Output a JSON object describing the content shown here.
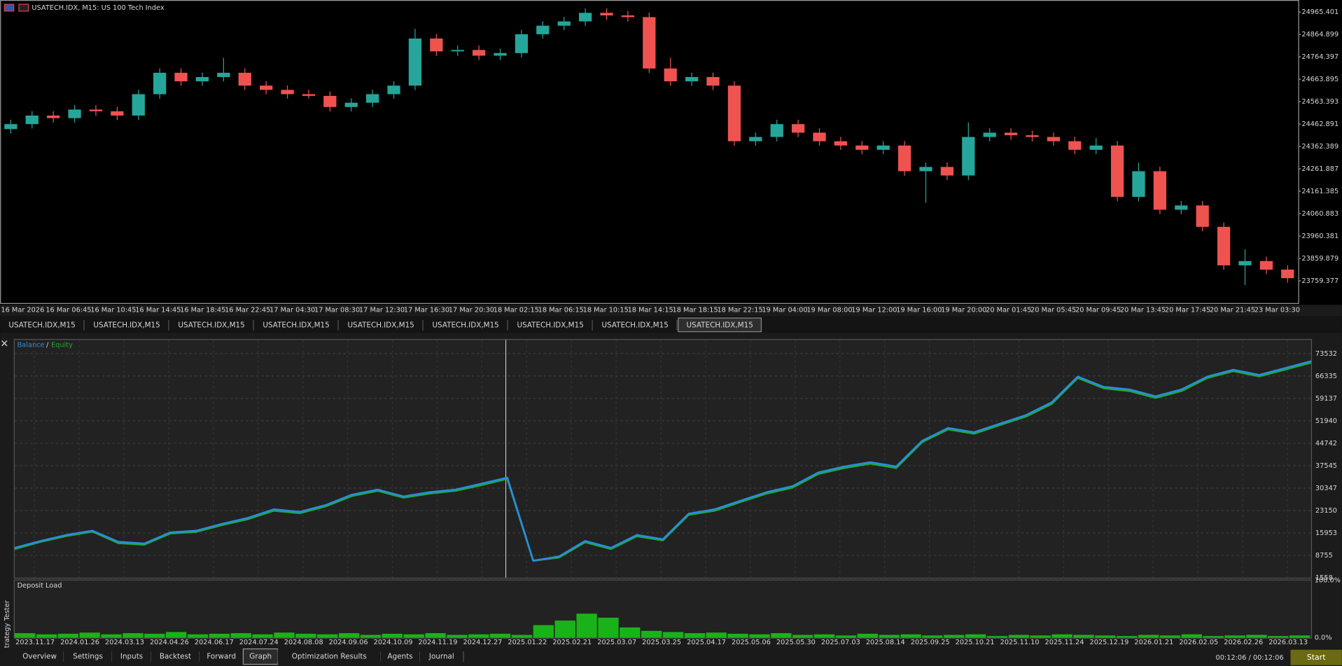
{
  "chart_data": [
    {
      "type": "candlestick",
      "title": "USATECH.IDX, M15:  US 100 Tech Index",
      "up_color": "#26a69a",
      "down_color": "#ef5350",
      "ylim": [
        23659.5,
        25019.2
      ],
      "yticks": [
        24965.401,
        24864.899,
        24764.397,
        24663.895,
        24563.393,
        24462.891,
        24362.389,
        24261.887,
        24161.385,
        24060.883,
        23960.381,
        23859.879,
        23759.377
      ],
      "x_labels": [
        "16 Mar 2026",
        "16 Mar 06:45",
        "16 Mar 10:45",
        "16 Mar 14:45",
        "16 Mar 18:45",
        "16 Mar 22:45",
        "17 Mar 04:30",
        "17 Mar 08:30",
        "17 Mar 12:30",
        "17 Mar 16:30",
        "17 Mar 20:30",
        "18 Mar 02:15",
        "18 Mar 06:15",
        "18 Mar 10:15",
        "18 Mar 14:15",
        "18 Mar 18:15",
        "18 Mar 22:15",
        "19 Mar 04:00",
        "19 Mar 08:00",
        "19 Mar 12:00",
        "19 Mar 16:00",
        "19 Mar 20:00",
        "20 Mar 01:45",
        "20 Mar 05:45",
        "20 Mar 09:45",
        "20 Mar 13:45",
        "20 Mar 17:45",
        "20 Mar 21:45",
        "23 Mar 03:30"
      ],
      "candles": [
        [
          24440.0,
          24482.3,
          24420.0,
          24462.3
        ],
        [
          24462.3,
          24520.7,
          24442.3,
          24500.7
        ],
        [
          24500.7,
          24520.7,
          24469.2,
          24489.2
        ],
        [
          24489.2,
          24547.6,
          24469.2,
          24527.6
        ],
        [
          24527.6,
          24547.6,
          24499.9,
          24519.9
        ],
        [
          24519.9,
          24539.9,
          24480.7,
          24500.7
        ],
        [
          24500.7,
          24616.7,
          24480.7,
          24596.7
        ],
        [
          24596.7,
          24712.7,
          24576.7,
          24692.7
        ],
        [
          24692.7,
          24712.7,
          24634.3,
          24654.3
        ],
        [
          24654.3,
          24693.5,
          24634.3,
          24673.5
        ],
        [
          24673.5,
          24760.0,
          24653.5,
          24692.7
        ],
        [
          24692.7,
          24712.7,
          24615.1,
          24635.1
        ],
        [
          24635.1,
          24655.1,
          24595.9,
          24615.9
        ],
        [
          24615.9,
          24635.9,
          24576.7,
          24596.7
        ],
        [
          24596.7,
          24616.7,
          24576.7,
          24589.0
        ],
        [
          24589.0,
          24609.0,
          24519.1,
          24539.1
        ],
        [
          24539.1,
          24578.3,
          24519.1,
          24558.3
        ],
        [
          24558.3,
          24616.7,
          24538.3,
          24596.7
        ],
        [
          24596.7,
          24655.1,
          24576.7,
          24635.1
        ],
        [
          24635.1,
          24890.0,
          24615.1,
          24846.4
        ],
        [
          24846.4,
          24866.4,
          24768.7,
          24788.7
        ],
        [
          24788.7,
          24815.0,
          24768.7,
          24795.0
        ],
        [
          24795.0,
          24815.0,
          24749.5,
          24769.5
        ],
        [
          24769.5,
          24801.1,
          24749.5,
          24781.1
        ],
        [
          24781.1,
          24885.6,
          24761.1,
          24865.6
        ],
        [
          24865.6,
          24923.9,
          24845.6,
          24903.9
        ],
        [
          24903.9,
          24943.2,
          24883.9,
          24923.2
        ],
        [
          24923.2,
          24981.6,
          24903.2,
          24961.6
        ],
        [
          24961.6,
          24981.6,
          24930.1,
          24950.1
        ],
        [
          24950.1,
          24970.1,
          24922.4,
          24942.4
        ],
        [
          24942.4,
          24962.4,
          24691.9,
          24711.9
        ],
        [
          24711.9,
          24760.0,
          24634.3,
          24654.3
        ],
        [
          24654.3,
          24693.5,
          24634.3,
          24673.5
        ],
        [
          24673.5,
          24693.5,
          24615.1,
          24635.1
        ],
        [
          24635.1,
          24655.1,
          24365.5,
          24385.5
        ],
        [
          24385.5,
          24424.7,
          24365.5,
          24404.7
        ],
        [
          24404.7,
          24482.3,
          24384.7,
          24462.3
        ],
        [
          24462.3,
          24482.3,
          24403.9,
          24423.9
        ],
        [
          24423.9,
          24443.9,
          24365.5,
          24385.5
        ],
        [
          24385.5,
          24405.5,
          24346.3,
          24366.3
        ],
        [
          24366.3,
          24386.3,
          24327.1,
          24347.1
        ],
        [
          24347.1,
          24386.3,
          24327.1,
          24366.3
        ],
        [
          24366.3,
          24386.3,
          24231.0,
          24251.0
        ],
        [
          24251.0,
          24290.2,
          24110.0,
          24270.2
        ],
        [
          24270.2,
          24290.2,
          24211.8,
          24231.8
        ],
        [
          24231.8,
          24470.0,
          24211.8,
          24404.7
        ],
        [
          24404.7,
          24443.9,
          24384.7,
          24423.9
        ],
        [
          24423.9,
          24443.9,
          24392.4,
          24412.4
        ],
        [
          24412.4,
          24432.4,
          24384.7,
          24404.7
        ],
        [
          24404.7,
          24424.7,
          24365.5,
          24385.5
        ],
        [
          24385.5,
          24405.5,
          24327.1,
          24347.1
        ],
        [
          24347.1,
          24400.0,
          24327.1,
          24366.3
        ],
        [
          24366.3,
          24386.3,
          24115.8,
          24135.8
        ],
        [
          24135.8,
          24290.0,
          24115.8,
          24251.0
        ],
        [
          24251.0,
          24271.0,
          24058.2,
          24078.2
        ],
        [
          24078.2,
          24117.4,
          24058.2,
          24097.4
        ],
        [
          24097.4,
          24117.4,
          23981.4,
          24001.4
        ],
        [
          24001.4,
          24021.4,
          23808.6,
          23828.6
        ],
        [
          23828.6,
          23900.0,
          23740.0,
          23847.8
        ],
        [
          23847.8,
          23867.8,
          23789.4,
          23809.4
        ],
        [
          23809.4,
          23829.4,
          23751.0,
          23771.0
        ]
      ]
    },
    {
      "type": "line",
      "legend_separator": "/",
      "grid": true,
      "ylim": [
        1558,
        77927
      ],
      "yticks": [
        73532,
        66335,
        59137,
        51940,
        44742,
        37545,
        30347,
        23150,
        15953,
        8755,
        1558
      ],
      "x_labels": [
        "2023.11.17",
        "2024.01.26",
        "2024.03.13",
        "2024.04.26",
        "2024.06.17",
        "2024.07.24",
        "2024.08.08",
        "2024.09.06",
        "2024.10.09",
        "2024.11.19",
        "2024.12.27",
        "2025.01.22",
        "2025.02.21",
        "2025.03.07",
        "2025.03.25",
        "2025.04.17",
        "2025.05.06",
        "2025.05.30",
        "2025.07.03",
        "2025.08.14",
        "2025.09.25",
        "2025.10.21",
        "2025.11.10",
        "2025.11.24",
        "2025.12.19",
        "2026.01.21",
        "2026.02.05",
        "2026.02.26",
        "2026.03.13"
      ],
      "series": [
        {
          "name": "Equity",
          "color": "#1faa2a",
          "values": [
            10800,
            13100,
            15000,
            16400,
            12700,
            12200,
            15800,
            16300,
            18500,
            20400,
            23100,
            22300,
            24500,
            27800,
            29500,
            27300,
            28600,
            29500,
            31300,
            33300,
            7052,
            8100,
            13000,
            10800,
            14900,
            13600,
            21800,
            23100,
            25900,
            28600,
            30500,
            34900,
            36800,
            38200,
            36800,
            45100,
            49200,
            47800,
            50600,
            53300,
            57400,
            65700,
            62400,
            61500,
            59300,
            61500,
            65700,
            67900,
            66200,
            68400,
            70600
          ]
        },
        {
          "name": "Balance",
          "color": "#2a8cdc",
          "values": [
            11173,
            13370,
            15293,
            16667,
            13095,
            12546,
            16117,
            16667,
            18864,
            20787,
            23534,
            22710,
            24908,
            28204,
            29853,
            27655,
            29028,
            29853,
            31776,
            33699,
            7052,
            8426,
            13370,
            11173,
            15293,
            13919,
            22160,
            23534,
            26281,
            29028,
            30951,
            35347,
            37270,
            38643,
            37270,
            45510,
            49631,
            48257,
            51004,
            53751,
            57872,
            66112,
            62816,
            61992,
            59794,
            61992,
            66112,
            68309,
            66661,
            68858,
            71056
          ]
        }
      ]
    },
    {
      "type": "bar",
      "title": "Deposit Load",
      "color": "#19b319",
      "grid": true,
      "ylim": [
        0,
        100
      ],
      "yticks": [
        {
          "value": 100,
          "label": "100.0%"
        },
        {
          "value": 0,
          "label": "0.0%"
        }
      ],
      "values": [
        8,
        6,
        7,
        9,
        6,
        8,
        7,
        10,
        6,
        7,
        8,
        6,
        9,
        7,
        6,
        8,
        5,
        7,
        6,
        8,
        5,
        6,
        7,
        5,
        22,
        30,
        42,
        35,
        18,
        12,
        10,
        8,
        9,
        7,
        6,
        8,
        5,
        6,
        4,
        7,
        5,
        6,
        4,
        5,
        6,
        3,
        5,
        4,
        6,
        5,
        4,
        3,
        5,
        4,
        6,
        3,
        4,
        5,
        3,
        4
      ]
    }
  ],
  "chart_tabs": [
    "USATECH.IDX,M15",
    "USATECH.IDX,M15",
    "USATECH.IDX,M15",
    "USATECH.IDX,M15",
    "USATECH.IDX,M15",
    "USATECH.IDX,M15",
    "USATECH.IDX,M15",
    "USATECH.IDX,M15",
    "USATECH.IDX,M15"
  ],
  "panel_title": "Strategy Tester",
  "tester_tabs": [
    "Overview",
    "Settings",
    "Inputs",
    "Backtest",
    "Forward",
    "Graph",
    "Optimization Results",
    "Agents",
    "Journal"
  ],
  "timer": "00:12:06 / 00:12:06",
  "start_button": "Start"
}
